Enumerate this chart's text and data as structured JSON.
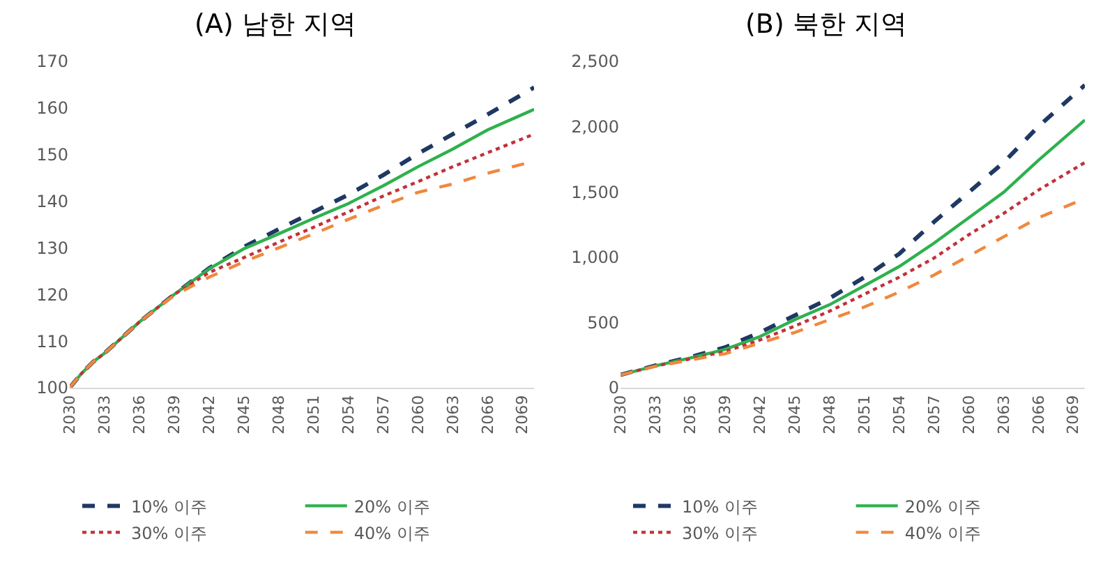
{
  "chart_data": [
    {
      "type": "line",
      "title": "(A) 남한 지역",
      "x": [
        2030,
        2031,
        2032,
        2033,
        2036,
        2039,
        2042,
        2045,
        2048,
        2051,
        2054,
        2057,
        2060,
        2063,
        2066,
        2070
      ],
      "series": [
        {
          "name": "10% 이주",
          "color": "#1f3864",
          "line_style": "dashed",
          "values": [
            100,
            103,
            105.5,
            107.4,
            114.1,
            120,
            125.6,
            130.2,
            134,
            137.7,
            141.4,
            145.6,
            150.2,
            154.4,
            158.6,
            164.4
          ]
        },
        {
          "name": "20% 이주",
          "color": "#2eb14e",
          "line_style": "solid",
          "values": [
            100,
            103,
            105.5,
            107.4,
            114.1,
            120,
            125.5,
            129.8,
            133,
            136.3,
            139.5,
            143.3,
            147.4,
            151.2,
            155.3,
            159.7
          ]
        },
        {
          "name": "30% 이주",
          "color": "#c0323a",
          "line_style": "dotted",
          "values": [
            100,
            103,
            105.5,
            107.4,
            114.1,
            120,
            124.7,
            127.9,
            131.2,
            134.4,
            137.7,
            141.1,
            144.2,
            147.4,
            150.4,
            154.4
          ]
        },
        {
          "name": "40% 이주",
          "color": "#f0883e",
          "line_style": "dashed",
          "values": [
            100,
            103,
            105.5,
            107.4,
            114.1,
            119.8,
            123.7,
            127,
            130,
            133,
            136.1,
            139.1,
            141.9,
            143.7,
            146,
            148.6
          ]
        }
      ],
      "xlim": [
        2030,
        2070
      ],
      "xticks": [
        2030,
        2033,
        2036,
        2039,
        2042,
        2045,
        2048,
        2051,
        2054,
        2057,
        2060,
        2063,
        2066,
        2069
      ],
      "ylim": [
        100,
        170
      ],
      "yticks": [
        100,
        110,
        120,
        130,
        140,
        150,
        160,
        170
      ],
      "grid": false,
      "legend": "bottom",
      "marker": "none"
    },
    {
      "type": "line",
      "title": "(B) 북한 지역",
      "x": [
        2030,
        2033,
        2036,
        2039,
        2042,
        2045,
        2048,
        2051,
        2054,
        2057,
        2060,
        2063,
        2066,
        2070
      ],
      "series": [
        {
          "name": "10% 이주",
          "color": "#1f3864",
          "line_style": "dashed",
          "values": [
            98,
            170,
            234,
            309,
            423,
            553,
            684,
            846,
            1025,
            1270,
            1497,
            1725,
            2002,
            2318
          ]
        },
        {
          "name": "20% 이주",
          "color": "#2eb14e",
          "line_style": "solid",
          "values": [
            98,
            168,
            228,
            293,
            391,
            521,
            635,
            781,
            928,
            1107,
            1302,
            1497,
            1742,
            2051
          ]
        },
        {
          "name": "30% 이주",
          "color": "#c0323a",
          "line_style": "dotted",
          "values": [
            98,
            166,
            220,
            277,
            365,
            472,
            586,
            716,
            846,
            993,
            1172,
            1335,
            1514,
            1725
          ]
        },
        {
          "name": "40% 이주",
          "color": "#f0883e",
          "line_style": "dashed",
          "values": [
            98,
            163,
            212,
            260,
            342,
            423,
            521,
            618,
            732,
            863,
            1009,
            1156,
            1302,
            1449
          ]
        }
      ],
      "xlim": [
        2030,
        2070
      ],
      "xticks": [
        2030,
        2033,
        2036,
        2039,
        2042,
        2045,
        2048,
        2051,
        2054,
        2057,
        2060,
        2063,
        2066,
        2069
      ],
      "ylim": [
        0,
        2500
      ],
      "yticks": [
        0,
        500,
        {
          "value": 1000,
          "label": "1,000"
        },
        {
          "value": 1500,
          "label": "1,500"
        },
        {
          "value": 2000,
          "label": "2,000"
        },
        {
          "value": 2500,
          "label": "2,500"
        }
      ],
      "grid": false,
      "legend": "bottom",
      "marker": "none"
    }
  ]
}
